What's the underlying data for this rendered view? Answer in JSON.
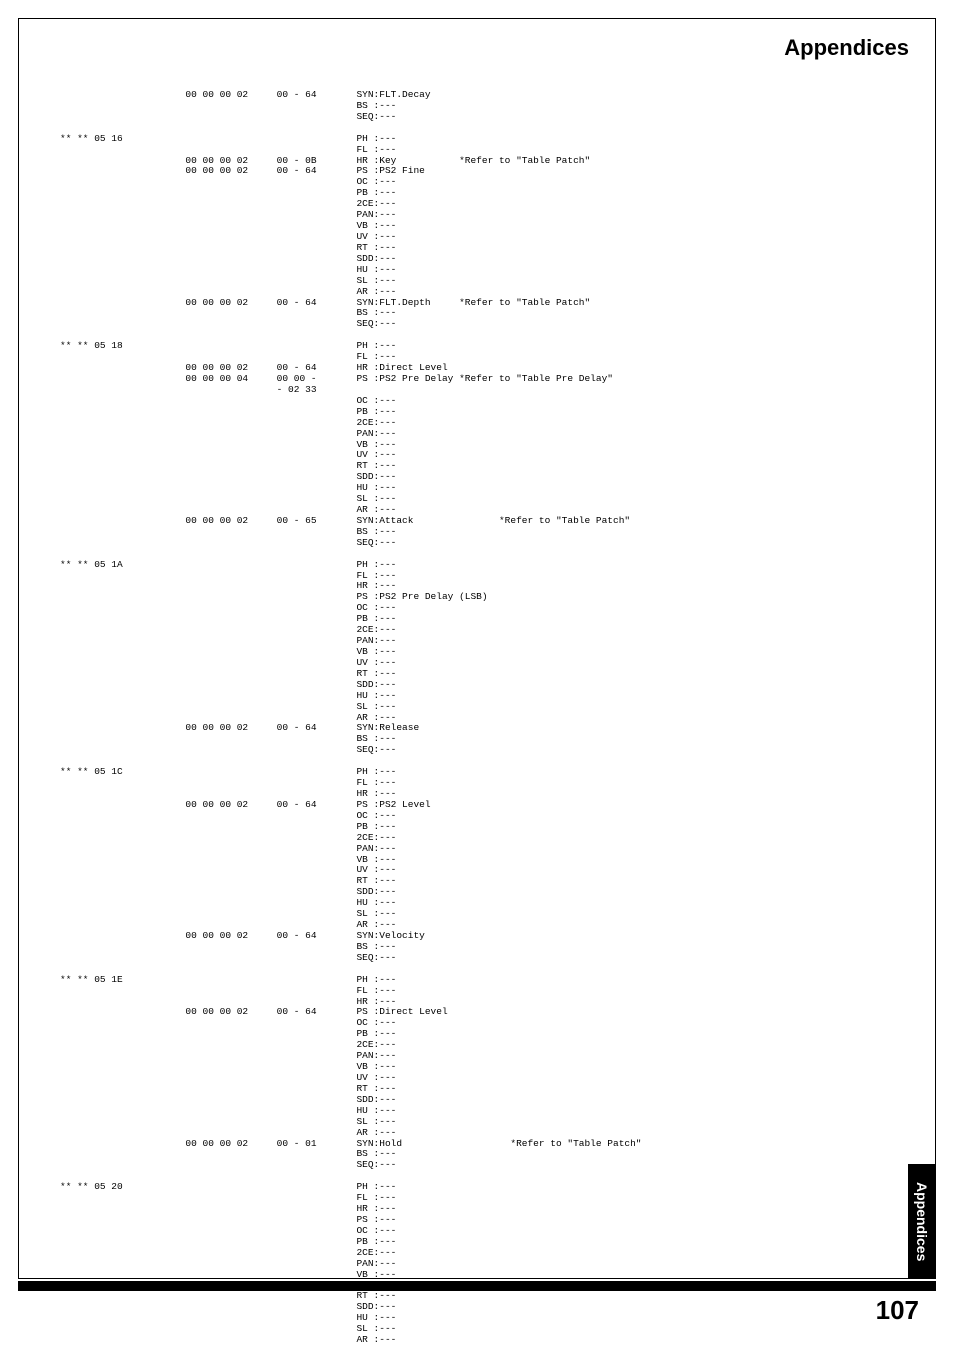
{
  "header": {
    "title": "Appendices"
  },
  "sidebar": {
    "label": "Appendices"
  },
  "footer": {
    "page_number": "107"
  },
  "rows": [
    {
      "addr": "",
      "hex": "00 00 00 02",
      "rng": "00 - 64",
      "desc": "SYN:FLT.Decay",
      "note": ""
    },
    {
      "addr": "",
      "hex": "",
      "rng": "",
      "desc": "BS :---",
      "note": ""
    },
    {
      "addr": "",
      "hex": "",
      "rng": "",
      "desc": "SEQ:---",
      "note": ""
    },
    {
      "addr": "",
      "hex": "",
      "rng": "",
      "desc": "",
      "note": ""
    },
    {
      "addr": "** ** 05 16",
      "hex": "",
      "rng": "",
      "desc": "PH :---",
      "note": ""
    },
    {
      "addr": "",
      "hex": "",
      "rng": "",
      "desc": "FL :---",
      "note": ""
    },
    {
      "addr": "",
      "hex": "00 00 00 02",
      "rng": "00 - 0B",
      "desc": "HR :Key",
      "note": "*Refer to \"Table Patch\""
    },
    {
      "addr": "",
      "hex": "00 00 00 02",
      "rng": "00 - 64",
      "desc": "PS :PS2 Fine",
      "note": ""
    },
    {
      "addr": "",
      "hex": "",
      "rng": "",
      "desc": "OC :---",
      "note": ""
    },
    {
      "addr": "",
      "hex": "",
      "rng": "",
      "desc": "PB :---",
      "note": ""
    },
    {
      "addr": "",
      "hex": "",
      "rng": "",
      "desc": "2CE:---",
      "note": ""
    },
    {
      "addr": "",
      "hex": "",
      "rng": "",
      "desc": "PAN:---",
      "note": ""
    },
    {
      "addr": "",
      "hex": "",
      "rng": "",
      "desc": "VB :---",
      "note": ""
    },
    {
      "addr": "",
      "hex": "",
      "rng": "",
      "desc": "UV :---",
      "note": ""
    },
    {
      "addr": "",
      "hex": "",
      "rng": "",
      "desc": "RT :---",
      "note": ""
    },
    {
      "addr": "",
      "hex": "",
      "rng": "",
      "desc": "SDD:---",
      "note": ""
    },
    {
      "addr": "",
      "hex": "",
      "rng": "",
      "desc": "HU :---",
      "note": ""
    },
    {
      "addr": "",
      "hex": "",
      "rng": "",
      "desc": "SL :---",
      "note": ""
    },
    {
      "addr": "",
      "hex": "",
      "rng": "",
      "desc": "AR :---",
      "note": ""
    },
    {
      "addr": "",
      "hex": "00 00 00 02",
      "rng": "00 - 64",
      "desc": "SYN:FLT.Depth",
      "note": "*Refer to \"Table Patch\""
    },
    {
      "addr": "",
      "hex": "",
      "rng": "",
      "desc": "BS :---",
      "note": ""
    },
    {
      "addr": "",
      "hex": "",
      "rng": "",
      "desc": "SEQ:---",
      "note": ""
    },
    {
      "addr": "",
      "hex": "",
      "rng": "",
      "desc": "",
      "note": ""
    },
    {
      "addr": "** ** 05 18",
      "hex": "",
      "rng": "",
      "desc": "PH :---",
      "note": ""
    },
    {
      "addr": "",
      "hex": "",
      "rng": "",
      "desc": "FL :---",
      "note": ""
    },
    {
      "addr": "",
      "hex": "00 00 00 02",
      "rng": "00 - 64",
      "desc": "HR :Direct Level",
      "note": ""
    },
    {
      "addr": "",
      "hex": "00 00 00 04",
      "rng": "00 00 -",
      "desc": "PS :PS2 Pre Delay",
      "note": "*Refer to \"Table Pre Delay\""
    },
    {
      "addr": "",
      "hex": "",
      "rng": "- 02 33",
      "desc": "",
      "note": ""
    },
    {
      "addr": "",
      "hex": "",
      "rng": "",
      "desc": "OC :---",
      "note": ""
    },
    {
      "addr": "",
      "hex": "",
      "rng": "",
      "desc": "PB :---",
      "note": ""
    },
    {
      "addr": "",
      "hex": "",
      "rng": "",
      "desc": "2CE:---",
      "note": ""
    },
    {
      "addr": "",
      "hex": "",
      "rng": "",
      "desc": "PAN:---",
      "note": ""
    },
    {
      "addr": "",
      "hex": "",
      "rng": "",
      "desc": "VB :---",
      "note": ""
    },
    {
      "addr": "",
      "hex": "",
      "rng": "",
      "desc": "UV :---",
      "note": ""
    },
    {
      "addr": "",
      "hex": "",
      "rng": "",
      "desc": "RT :---",
      "note": ""
    },
    {
      "addr": "",
      "hex": "",
      "rng": "",
      "desc": "SDD:---",
      "note": ""
    },
    {
      "addr": "",
      "hex": "",
      "rng": "",
      "desc": "HU :---",
      "note": ""
    },
    {
      "addr": "",
      "hex": "",
      "rng": "",
      "desc": "SL :---",
      "note": ""
    },
    {
      "addr": "",
      "hex": "",
      "rng": "",
      "desc": "AR :---",
      "note": ""
    },
    {
      "addr": "",
      "hex": "00 00 00 02",
      "rng": "00 - 65",
      "desc": "SYN:Attack",
      "note": "       *Refer to \"Table Patch\""
    },
    {
      "addr": "",
      "hex": "",
      "rng": "",
      "desc": "BS :---",
      "note": ""
    },
    {
      "addr": "",
      "hex": "",
      "rng": "",
      "desc": "SEQ:---",
      "note": ""
    },
    {
      "addr": "",
      "hex": "",
      "rng": "",
      "desc": "",
      "note": ""
    },
    {
      "addr": "** ** 05 1A",
      "hex": "",
      "rng": "",
      "desc": "PH :---",
      "note": ""
    },
    {
      "addr": "",
      "hex": "",
      "rng": "",
      "desc": "FL :---",
      "note": ""
    },
    {
      "addr": "",
      "hex": "",
      "rng": "",
      "desc": "HR :---",
      "note": ""
    },
    {
      "addr": "",
      "hex": "",
      "rng": "",
      "desc": "PS :PS2 Pre Delay (LSB)",
      "note": ""
    },
    {
      "addr": "",
      "hex": "",
      "rng": "",
      "desc": "OC :---",
      "note": ""
    },
    {
      "addr": "",
      "hex": "",
      "rng": "",
      "desc": "PB :---",
      "note": ""
    },
    {
      "addr": "",
      "hex": "",
      "rng": "",
      "desc": "2CE:---",
      "note": ""
    },
    {
      "addr": "",
      "hex": "",
      "rng": "",
      "desc": "PAN:---",
      "note": ""
    },
    {
      "addr": "",
      "hex": "",
      "rng": "",
      "desc": "VB :---",
      "note": ""
    },
    {
      "addr": "",
      "hex": "",
      "rng": "",
      "desc": "UV :---",
      "note": ""
    },
    {
      "addr": "",
      "hex": "",
      "rng": "",
      "desc": "RT :---",
      "note": ""
    },
    {
      "addr": "",
      "hex": "",
      "rng": "",
      "desc": "SDD:---",
      "note": ""
    },
    {
      "addr": "",
      "hex": "",
      "rng": "",
      "desc": "HU :---",
      "note": ""
    },
    {
      "addr": "",
      "hex": "",
      "rng": "",
      "desc": "SL :---",
      "note": ""
    },
    {
      "addr": "",
      "hex": "",
      "rng": "",
      "desc": "AR :---",
      "note": ""
    },
    {
      "addr": "",
      "hex": "00 00 00 02",
      "rng": "00 - 64",
      "desc": "SYN:Release",
      "note": ""
    },
    {
      "addr": "",
      "hex": "",
      "rng": "",
      "desc": "BS :---",
      "note": ""
    },
    {
      "addr": "",
      "hex": "",
      "rng": "",
      "desc": "SEQ:---",
      "note": ""
    },
    {
      "addr": "",
      "hex": "",
      "rng": "",
      "desc": "",
      "note": ""
    },
    {
      "addr": "** ** 05 1C",
      "hex": "",
      "rng": "",
      "desc": "PH :---",
      "note": ""
    },
    {
      "addr": "",
      "hex": "",
      "rng": "",
      "desc": "FL :---",
      "note": ""
    },
    {
      "addr": "",
      "hex": "",
      "rng": "",
      "desc": "HR :---",
      "note": ""
    },
    {
      "addr": "",
      "hex": "00 00 00 02",
      "rng": "00 - 64",
      "desc": "PS :PS2 Level",
      "note": ""
    },
    {
      "addr": "",
      "hex": "",
      "rng": "",
      "desc": "OC :---",
      "note": ""
    },
    {
      "addr": "",
      "hex": "",
      "rng": "",
      "desc": "PB :---",
      "note": ""
    },
    {
      "addr": "",
      "hex": "",
      "rng": "",
      "desc": "2CE:---",
      "note": ""
    },
    {
      "addr": "",
      "hex": "",
      "rng": "",
      "desc": "PAN:---",
      "note": ""
    },
    {
      "addr": "",
      "hex": "",
      "rng": "",
      "desc": "VB :---",
      "note": ""
    },
    {
      "addr": "",
      "hex": "",
      "rng": "",
      "desc": "UV :---",
      "note": ""
    },
    {
      "addr": "",
      "hex": "",
      "rng": "",
      "desc": "RT :---",
      "note": ""
    },
    {
      "addr": "",
      "hex": "",
      "rng": "",
      "desc": "SDD:---",
      "note": ""
    },
    {
      "addr": "",
      "hex": "",
      "rng": "",
      "desc": "HU :---",
      "note": ""
    },
    {
      "addr": "",
      "hex": "",
      "rng": "",
      "desc": "SL :---",
      "note": ""
    },
    {
      "addr": "",
      "hex": "",
      "rng": "",
      "desc": "AR :---",
      "note": ""
    },
    {
      "addr": "",
      "hex": "00 00 00 02",
      "rng": "00 - 64",
      "desc": "SYN:Velocity",
      "note": ""
    },
    {
      "addr": "",
      "hex": "",
      "rng": "",
      "desc": "BS :---",
      "note": ""
    },
    {
      "addr": "",
      "hex": "",
      "rng": "",
      "desc": "SEQ:---",
      "note": ""
    },
    {
      "addr": "",
      "hex": "",
      "rng": "",
      "desc": "",
      "note": ""
    },
    {
      "addr": "** ** 05 1E",
      "hex": "",
      "rng": "",
      "desc": "PH :---",
      "note": ""
    },
    {
      "addr": "",
      "hex": "",
      "rng": "",
      "desc": "FL :---",
      "note": ""
    },
    {
      "addr": "",
      "hex": "",
      "rng": "",
      "desc": "HR :---",
      "note": ""
    },
    {
      "addr": "",
      "hex": "00 00 00 02",
      "rng": "00 - 64",
      "desc": "PS :Direct Level",
      "note": ""
    },
    {
      "addr": "",
      "hex": "",
      "rng": "",
      "desc": "OC :---",
      "note": ""
    },
    {
      "addr": "",
      "hex": "",
      "rng": "",
      "desc": "PB :---",
      "note": ""
    },
    {
      "addr": "",
      "hex": "",
      "rng": "",
      "desc": "2CE:---",
      "note": ""
    },
    {
      "addr": "",
      "hex": "",
      "rng": "",
      "desc": "PAN:---",
      "note": ""
    },
    {
      "addr": "",
      "hex": "",
      "rng": "",
      "desc": "VB :---",
      "note": ""
    },
    {
      "addr": "",
      "hex": "",
      "rng": "",
      "desc": "UV :---",
      "note": ""
    },
    {
      "addr": "",
      "hex": "",
      "rng": "",
      "desc": "RT :---",
      "note": ""
    },
    {
      "addr": "",
      "hex": "",
      "rng": "",
      "desc": "SDD:---",
      "note": ""
    },
    {
      "addr": "",
      "hex": "",
      "rng": "",
      "desc": "HU :---",
      "note": ""
    },
    {
      "addr": "",
      "hex": "",
      "rng": "",
      "desc": "SL :---",
      "note": ""
    },
    {
      "addr": "",
      "hex": "",
      "rng": "",
      "desc": "AR :---",
      "note": ""
    },
    {
      "addr": "",
      "hex": "00 00 00 02",
      "rng": "00 - 01",
      "desc": "SYN:Hold",
      "note": "         *Refer to \"Table Patch\""
    },
    {
      "addr": "",
      "hex": "",
      "rng": "",
      "desc": "BS :---",
      "note": ""
    },
    {
      "addr": "",
      "hex": "",
      "rng": "",
      "desc": "SEQ:---",
      "note": ""
    },
    {
      "addr": "",
      "hex": "",
      "rng": "",
      "desc": "",
      "note": ""
    },
    {
      "addr": "** ** 05 20",
      "hex": "",
      "rng": "",
      "desc": "PH :---",
      "note": ""
    },
    {
      "addr": "",
      "hex": "",
      "rng": "",
      "desc": "FL :---",
      "note": ""
    },
    {
      "addr": "",
      "hex": "",
      "rng": "",
      "desc": "HR :---",
      "note": ""
    },
    {
      "addr": "",
      "hex": "",
      "rng": "",
      "desc": "PS :---",
      "note": ""
    },
    {
      "addr": "",
      "hex": "",
      "rng": "",
      "desc": "OC :---",
      "note": ""
    },
    {
      "addr": "",
      "hex": "",
      "rng": "",
      "desc": "PB :---",
      "note": ""
    },
    {
      "addr": "",
      "hex": "",
      "rng": "",
      "desc": "2CE:---",
      "note": ""
    },
    {
      "addr": "",
      "hex": "",
      "rng": "",
      "desc": "PAN:---",
      "note": ""
    },
    {
      "addr": "",
      "hex": "",
      "rng": "",
      "desc": "VB :---",
      "note": ""
    },
    {
      "addr": "",
      "hex": "",
      "rng": "",
      "desc": "UV :---",
      "note": ""
    },
    {
      "addr": "",
      "hex": "",
      "rng": "",
      "desc": "RT :---",
      "note": ""
    },
    {
      "addr": "",
      "hex": "",
      "rng": "",
      "desc": "SDD:---",
      "note": ""
    },
    {
      "addr": "",
      "hex": "",
      "rng": "",
      "desc": "HU :---",
      "note": ""
    },
    {
      "addr": "",
      "hex": "",
      "rng": "",
      "desc": "SL :---",
      "note": ""
    },
    {
      "addr": "",
      "hex": "",
      "rng": "",
      "desc": "AR :---",
      "note": ""
    }
  ],
  "layout": {
    "col_addr": 0,
    "col_hex": 22,
    "col_rng": 38,
    "col_desc": 52,
    "col_note": 70
  }
}
